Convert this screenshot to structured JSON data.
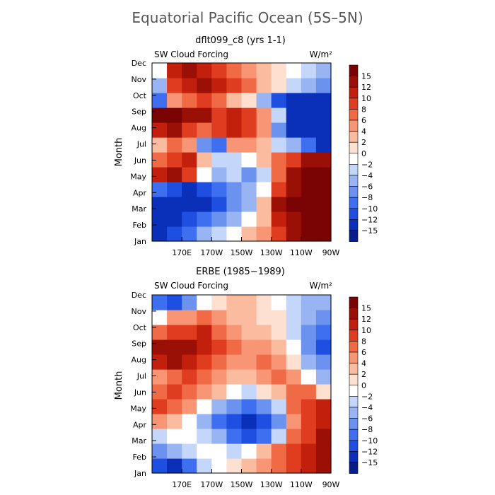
{
  "figure": {
    "title": "Equatorial Pacific Ocean (5S–5N)"
  },
  "colormap": {
    "levels": [
      -15,
      -12,
      -10,
      -8,
      -6,
      -4,
      -2,
      0,
      2,
      4,
      6,
      8,
      10,
      12,
      15
    ],
    "colors": [
      "#081d8c",
      "#0a2fb8",
      "#1f4fe0",
      "#3d6ff0",
      "#6b92ef",
      "#98b4f3",
      "#c4d6fa",
      "#ffffff",
      "#fde0cf",
      "#fbbb9e",
      "#f79575",
      "#ef6a45",
      "#e03c1f",
      "#c21f0c",
      "#9a0f06",
      "#7a0404"
    ]
  },
  "chart_data": [
    {
      "type": "heatmap",
      "subtitle": "dflt099_c8 (yrs 1-1)",
      "left_label": "SW Cloud Forcing",
      "right_label": "W/m²",
      "ylabel": "Month",
      "x_ticks": [
        "170E",
        "170W",
        "150W",
        "130W",
        "110W",
        "90W"
      ],
      "y_ticks": [
        "Jan",
        "Feb",
        "Mar",
        "Apr",
        "May",
        "Jun",
        "Jul",
        "Aug",
        "Sep",
        "Oct",
        "Nov",
        "Dec"
      ],
      "colorbar_labels": [
        "15",
        "12",
        "10",
        "8",
        "6",
        "4",
        "2",
        "0",
        "−2",
        "−4",
        "−6",
        "−8",
        "−10",
        "−12",
        "−15"
      ],
      "x_values": [
        155,
        165,
        175,
        185,
        195,
        205,
        215,
        225,
        235,
        245,
        255,
        265
      ],
      "months": [
        "Jan",
        "Feb",
        "Mar",
        "Apr",
        "May",
        "Jun",
        "Jul",
        "Aug",
        "Sep",
        "Oct",
        "Nov",
        "Dec"
      ],
      "values": [
        [
          -14,
          -12,
          -10,
          -6,
          -4,
          -1,
          2,
          5,
          8,
          12,
          15,
          16
        ],
        [
          -15,
          -14,
          -12,
          -10,
          -8,
          -6,
          -2,
          2,
          10,
          14,
          16,
          16
        ],
        [
          -14,
          -15,
          -14,
          -13,
          -12,
          -8,
          -6,
          3,
          12,
          15,
          16,
          16
        ],
        [
          -10,
          -12,
          -14,
          -12,
          -10,
          -8,
          -6,
          -2,
          8,
          14,
          16,
          16
        ],
        [
          10,
          12,
          8,
          -2,
          -6,
          -4,
          -8,
          -3,
          6,
          14,
          16,
          16
        ],
        [
          6,
          8,
          10,
          2,
          -4,
          -3,
          -2,
          2,
          6,
          8,
          12,
          14
        ],
        [
          2,
          6,
          4,
          -8,
          -10,
          4,
          4,
          2,
          -4,
          -6,
          -10,
          -15
        ],
        [
          10,
          12,
          8,
          6,
          8,
          10,
          8,
          4,
          -8,
          -15,
          -15,
          -15
        ],
        [
          16,
          16,
          14,
          12,
          8,
          10,
          8,
          4,
          -4,
          -14,
          -15,
          -15
        ],
        [
          -10,
          4,
          6,
          8,
          6,
          2,
          0,
          -6,
          -12,
          -15,
          -15,
          -15
        ],
        [
          -6,
          8,
          10,
          12,
          10,
          8,
          6,
          2,
          0,
          -4,
          -6,
          -8
        ],
        [
          -2,
          10,
          12,
          10,
          8,
          6,
          4,
          2,
          0,
          -2,
          -4,
          -6
        ]
      ]
    },
    {
      "type": "heatmap",
      "subtitle": "ERBE (1985−1989)",
      "left_label": "SW Cloud Forcing",
      "right_label": "W/m²",
      "ylabel": "Month",
      "x_ticks": [
        "170E",
        "170W",
        "150W",
        "130W",
        "110W",
        "90W"
      ],
      "y_ticks": [
        "Jan",
        "Feb",
        "Mar",
        "Apr",
        "May",
        "Jun",
        "Jul",
        "Aug",
        "Sep",
        "Oct",
        "Nov",
        "Dec"
      ],
      "colorbar_labels": [
        "15",
        "12",
        "10",
        "8",
        "6",
        "4",
        "2",
        "0",
        "−2",
        "−4",
        "−6",
        "−8",
        "−10",
        "−12",
        "−15"
      ],
      "x_values": [
        155,
        165,
        175,
        185,
        195,
        205,
        215,
        225,
        235,
        245,
        255,
        265
      ],
      "months": [
        "Jan",
        "Feb",
        "Mar",
        "Apr",
        "May",
        "Jun",
        "Jul",
        "Aug",
        "Sep",
        "Oct",
        "Nov",
        "Dec"
      ],
      "values": [
        [
          -12,
          -14,
          -10,
          -4,
          -2,
          0,
          2,
          4,
          6,
          8,
          10,
          12
        ],
        [
          -8,
          -6,
          -4,
          -2,
          -2,
          -4,
          -2,
          2,
          6,
          8,
          10,
          14
        ],
        [
          -4,
          -2,
          -2,
          -4,
          -6,
          -10,
          -12,
          -10,
          -4,
          6,
          8,
          12
        ],
        [
          4,
          2,
          -2,
          -6,
          -10,
          -12,
          -15,
          -12,
          -8,
          4,
          8,
          10
        ],
        [
          8,
          6,
          4,
          -2,
          -6,
          -8,
          -10,
          -8,
          -4,
          6,
          8,
          10
        ],
        [
          6,
          8,
          6,
          4,
          2,
          -2,
          -4,
          0,
          2,
          6,
          6,
          0
        ],
        [
          4,
          6,
          8,
          6,
          4,
          2,
          2,
          4,
          6,
          4,
          -2,
          -6
        ],
        [
          10,
          12,
          10,
          8,
          6,
          4,
          4,
          6,
          4,
          0,
          -6,
          -8
        ],
        [
          12,
          14,
          12,
          10,
          8,
          6,
          4,
          4,
          2,
          -2,
          -8,
          -12
        ],
        [
          6,
          8,
          8,
          10,
          6,
          4,
          2,
          2,
          0,
          -4,
          -8,
          -10
        ],
        [
          -2,
          4,
          4,
          6,
          4,
          2,
          2,
          0,
          0,
          -4,
          -6,
          -8
        ],
        [
          -10,
          -12,
          -8,
          -2,
          0,
          2,
          2,
          0,
          -2,
          -4,
          -6,
          -6
        ]
      ]
    }
  ]
}
